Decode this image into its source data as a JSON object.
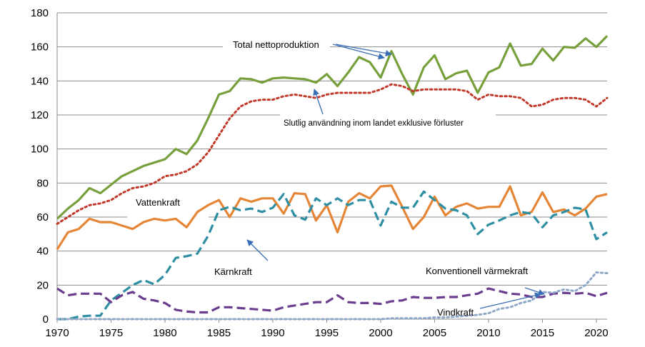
{
  "chart_data": {
    "type": "line",
    "xlim": [
      1970,
      2021
    ],
    "ylim": [
      0,
      180
    ],
    "grid": true,
    "legend": "none",
    "x_ticks": [
      "1970",
      "1975",
      "1980",
      "1985",
      "1990",
      "1995",
      "2000",
      "2005",
      "2010",
      "2015",
      "2020"
    ],
    "y_ticks": [
      "0",
      "20",
      "40",
      "60",
      "80",
      "100",
      "120",
      "140",
      "160",
      "180"
    ],
    "x": [
      1970,
      1971,
      1972,
      1973,
      1974,
      1975,
      1976,
      1977,
      1978,
      1979,
      1980,
      1981,
      1982,
      1983,
      1984,
      1985,
      1986,
      1987,
      1988,
      1989,
      1990,
      1991,
      1992,
      1993,
      1994,
      1995,
      1996,
      1997,
      1998,
      1999,
      2000,
      2001,
      2002,
      2003,
      2004,
      2005,
      2006,
      2007,
      2008,
      2009,
      2010,
      2011,
      2012,
      2013,
      2014,
      2015,
      2016,
      2017,
      2018,
      2019,
      2020,
      2021
    ],
    "series": [
      {
        "name": "Total nettoproduktion",
        "color": "#77a03c",
        "style": "solid",
        "values": [
          59,
          65,
          70,
          77,
          74,
          79,
          84,
          87,
          90,
          92,
          94,
          100,
          97,
          105,
          118,
          132,
          134,
          141.5,
          141,
          139,
          141.5,
          142,
          141.5,
          141,
          139,
          144,
          137,
          145,
          154,
          151,
          142,
          157.5,
          144,
          132,
          148,
          155,
          141,
          144.5,
          146,
          133,
          145,
          148,
          162,
          149,
          150,
          159,
          152,
          160,
          159.5,
          165,
          160,
          166.5
        ]
      },
      {
        "name": "Slutlig användning inom landet exklusive förluster",
        "color": "#c0392b",
        "style": "dotted",
        "values": [
          56,
          60,
          64,
          67,
          68,
          70,
          74,
          77,
          78,
          80,
          84,
          85,
          87,
          91,
          98,
          108,
          118,
          125,
          128,
          129,
          129,
          131,
          132,
          131,
          130,
          132,
          133,
          133,
          133,
          133,
          135,
          138,
          137,
          134,
          135,
          135,
          135,
          135,
          134,
          129,
          132,
          131,
          131,
          130,
          125,
          126,
          129,
          130,
          130,
          129,
          125,
          130
        ]
      },
      {
        "name": "Vattenkraft",
        "color": "#e58536",
        "style": "solid",
        "values": [
          41,
          51,
          53,
          59,
          57,
          57,
          55,
          53,
          57,
          59,
          58,
          59,
          54,
          63,
          67,
          70,
          60,
          71,
          69,
          71,
          71,
          62,
          74,
          73.5,
          58,
          67,
          51,
          69,
          74,
          71,
          78,
          78.5,
          66,
          53,
          60,
          72,
          61,
          66,
          68,
          65,
          66,
          66,
          78,
          61,
          63,
          74.5,
          63,
          64.5,
          61,
          65,
          72,
          73.5
        ]
      },
      {
        "name": "Kärnkraft",
        "color": "#2e8fa3",
        "style": "dashed",
        "values": [
          0,
          0,
          1.5,
          2,
          2,
          11,
          15.5,
          20,
          23,
          20.5,
          26,
          36,
          37,
          38.5,
          49,
          64,
          66,
          64,
          65,
          63,
          65.5,
          73.5,
          61,
          58.5,
          71,
          67,
          71,
          67,
          70,
          70,
          55,
          69,
          65.5,
          65.5,
          75,
          70,
          65,
          64,
          61,
          50,
          55.5,
          58,
          61,
          63,
          62,
          54,
          61,
          63,
          65.5,
          64.5,
          47,
          51
        ]
      },
      {
        "name": "Konventionell värmekraft",
        "color": "#6a3d8f",
        "style": "dashed",
        "values": [
          18,
          14,
          15,
          15,
          15,
          10,
          14,
          16,
          12,
          11,
          9.5,
          5.5,
          4.5,
          4,
          4,
          7,
          7,
          6.5,
          6,
          5.5,
          5,
          7,
          8,
          9,
          10,
          10,
          14,
          10,
          9.5,
          9.5,
          9,
          10.5,
          11,
          13,
          12.5,
          12.5,
          13,
          13,
          14,
          15,
          18,
          16.5,
          15,
          14.5,
          13,
          13,
          15,
          15.5,
          15,
          15.5,
          13.5,
          15.5
        ]
      },
      {
        "name": "Vindkraft",
        "color": "#8fa8c8",
        "style": "dotted",
        "values": [
          0,
          0,
          0,
          0,
          0,
          0,
          0,
          0,
          0,
          0,
          0,
          0,
          0,
          0,
          0,
          0,
          0,
          0,
          0,
          0,
          0,
          0,
          0,
          0,
          0,
          0,
          0,
          0,
          0,
          0,
          0,
          0.5,
          0.5,
          0.5,
          0.5,
          1,
          1,
          1.5,
          2,
          2.5,
          3.5,
          6,
          7,
          9.5,
          11,
          16,
          15.5,
          17.5,
          16.5,
          20,
          27.5,
          27
        ]
      }
    ],
    "annotations": {
      "total": "Total nettoproduktion",
      "slutlig": "Slutlig användning inom landet exklusive förluster",
      "vatten": "Vattenkraft",
      "karn": "Kärnkraft",
      "konv": "Konventionell värmekraft",
      "vind": "Vindkraft"
    }
  }
}
